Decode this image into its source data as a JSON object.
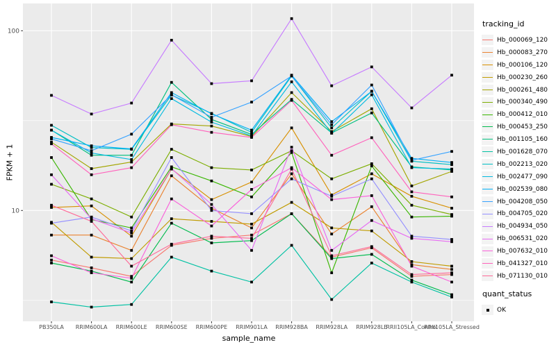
{
  "chart_data": {
    "type": "line",
    "title": "",
    "xlabel": "sample_name",
    "ylabel": "FPKM + 1",
    "y_scale": "log10",
    "y_ticks": [
      10,
      100
    ],
    "y_tick_labels": [
      "10",
      "100"
    ],
    "y_minor_gridlines": [
      3.162,
      31.623
    ],
    "ylim": [
      2.5,
      141
    ],
    "grid": "on",
    "panel_background": "#EBEBEB",
    "gridline_color": "#FFFFFF",
    "axis_text_color": "#4D4D4D",
    "point_marker": "black-square",
    "legend_position": "right",
    "categories": [
      "PB350LA",
      "RRIM600LA",
      "RRIM600LE",
      "RRIM600SE",
      "RRIM600PE",
      "RRIM901LA",
      "RRIM928BA",
      "RRIM928LA",
      "RRIM928LE",
      "RRII105LA_Control",
      "RRII105LA_Stressed"
    ],
    "series": [
      {
        "name": "Hb_000069_120",
        "color": "#F8766D",
        "values": [
          5.3,
          4.8,
          4.3,
          6.4,
          7.0,
          7.3,
          9.6,
          5.5,
          6.2,
          4.3,
          4.4
        ]
      },
      {
        "name": "Hb_000083_270",
        "color": "#EA8331",
        "values": [
          7.3,
          7.3,
          6.0,
          15.6,
          10.3,
          8.0,
          16.0,
          7.4,
          10.5,
          5.0,
          4.7
        ]
      },
      {
        "name": "Hb_000106_120",
        "color": "#D89000",
        "values": [
          10.4,
          10.6,
          7.2,
          17.0,
          11.5,
          14.4,
          28.8,
          12.2,
          16.0,
          12.0,
          10.3
        ]
      },
      {
        "name": "Hb_000230_260",
        "color": "#C09B00",
        "values": [
          8.6,
          5.5,
          5.4,
          9.0,
          8.7,
          8.4,
          11.1,
          8.0,
          7.7,
          5.2,
          4.9
        ]
      },
      {
        "name": "Hb_000261_480",
        "color": "#A3A500",
        "values": [
          24.0,
          17.1,
          18.6,
          30.3,
          29.5,
          25.8,
          45.3,
          27.5,
          36.8,
          13.7,
          16.5
        ]
      },
      {
        "name": "Hb_000340_490",
        "color": "#7CAE00",
        "values": [
          14.0,
          11.6,
          9.2,
          21.9,
          17.3,
          16.8,
          21.5,
          15.0,
          18.2,
          10.7,
          9.5
        ]
      },
      {
        "name": "Hb_000412_010",
        "color": "#39B600",
        "values": [
          19.7,
          8.9,
          8.0,
          17.5,
          14.6,
          11.9,
          21.0,
          4.5,
          17.7,
          9.2,
          9.3
        ]
      },
      {
        "name": "Hb_000453_250",
        "color": "#00BB4E",
        "values": [
          5.1,
          4.6,
          4.0,
          8.5,
          6.6,
          6.8,
          9.6,
          5.4,
          5.7,
          4.1,
          3.4
        ]
      },
      {
        "name": "Hb_001105_160",
        "color": "#00BF7D",
        "values": [
          28.0,
          20.3,
          20.3,
          51.6,
          32.1,
          26.5,
          41.5,
          27.0,
          34.9,
          17.5,
          16.8
        ]
      },
      {
        "name": "Hb_001628_070",
        "color": "#00C1A3",
        "values": [
          3.1,
          2.9,
          3.0,
          5.5,
          4.6,
          4.0,
          6.4,
          3.2,
          5.1,
          4.0,
          3.3
        ]
      },
      {
        "name": "Hb_002213_020",
        "color": "#00BFC4",
        "values": [
          29.8,
          22.4,
          21.9,
          43.9,
          34.7,
          27.2,
          56.0,
          28.8,
          46.1,
          18.8,
          18.0
        ]
      },
      {
        "name": "Hb_002477_090",
        "color": "#00BAE0",
        "values": [
          28.0,
          20.9,
          19.2,
          41.9,
          31.0,
          26.0,
          52.0,
          26.9,
          44.0,
          17.3,
          17.0
        ]
      },
      {
        "name": "Hb_002539_080",
        "color": "#00B0F6",
        "values": [
          25.5,
          22.9,
          22.0,
          45.3,
          34.5,
          28.0,
          56.6,
          31.2,
          46.0,
          19.5,
          18.5
        ]
      },
      {
        "name": "Hb_004208_050",
        "color": "#35A2FF",
        "values": [
          25.0,
          21.5,
          26.6,
          44.0,
          33.0,
          40.1,
          56.0,
          30.0,
          49.9,
          19.0,
          21.3
        ]
      },
      {
        "name": "Hb_004705_020",
        "color": "#9590FF",
        "values": [
          8.5,
          9.2,
          7.7,
          19.7,
          10.0,
          9.6,
          15.0,
          12.0,
          15.0,
          7.2,
          6.9
        ]
      },
      {
        "name": "Hb_004934_050",
        "color": "#C77CFF",
        "values": [
          43.7,
          34.4,
          39.6,
          88.6,
          50.8,
          52.7,
          116.8,
          49.4,
          62.9,
          37.2,
          56.6
        ]
      },
      {
        "name": "Hb_006531_020",
        "color": "#E76BF3",
        "values": [
          15.8,
          9.0,
          7.5,
          17.1,
          10.8,
          6.0,
          22.5,
          6.0,
          8.8,
          7.0,
          6.7
        ]
      },
      {
        "name": "Hb_007632_010",
        "color": "#FA62DB",
        "values": [
          5.6,
          4.5,
          4.2,
          11.6,
          8.2,
          13.1,
          17.3,
          11.5,
          12.1,
          4.9,
          4.0
        ]
      },
      {
        "name": "Hb_041327_010",
        "color": "#FF62BC",
        "values": [
          23.5,
          15.8,
          17.3,
          30.0,
          27.2,
          25.5,
          41.0,
          20.3,
          25.4,
          12.7,
          11.9
        ]
      },
      {
        "name": "Hb_071130_010",
        "color": "#FF6A98",
        "values": [
          10.7,
          8.7,
          4.9,
          6.5,
          7.2,
          7.0,
          17.0,
          5.6,
          6.3,
          4.4,
          4.5
        ]
      }
    ],
    "legend": {
      "tracking_title": "tracking_id",
      "quant_title": "quant_status",
      "quant_items": [
        {
          "label": "OK",
          "marker": "black-square"
        }
      ]
    }
  }
}
